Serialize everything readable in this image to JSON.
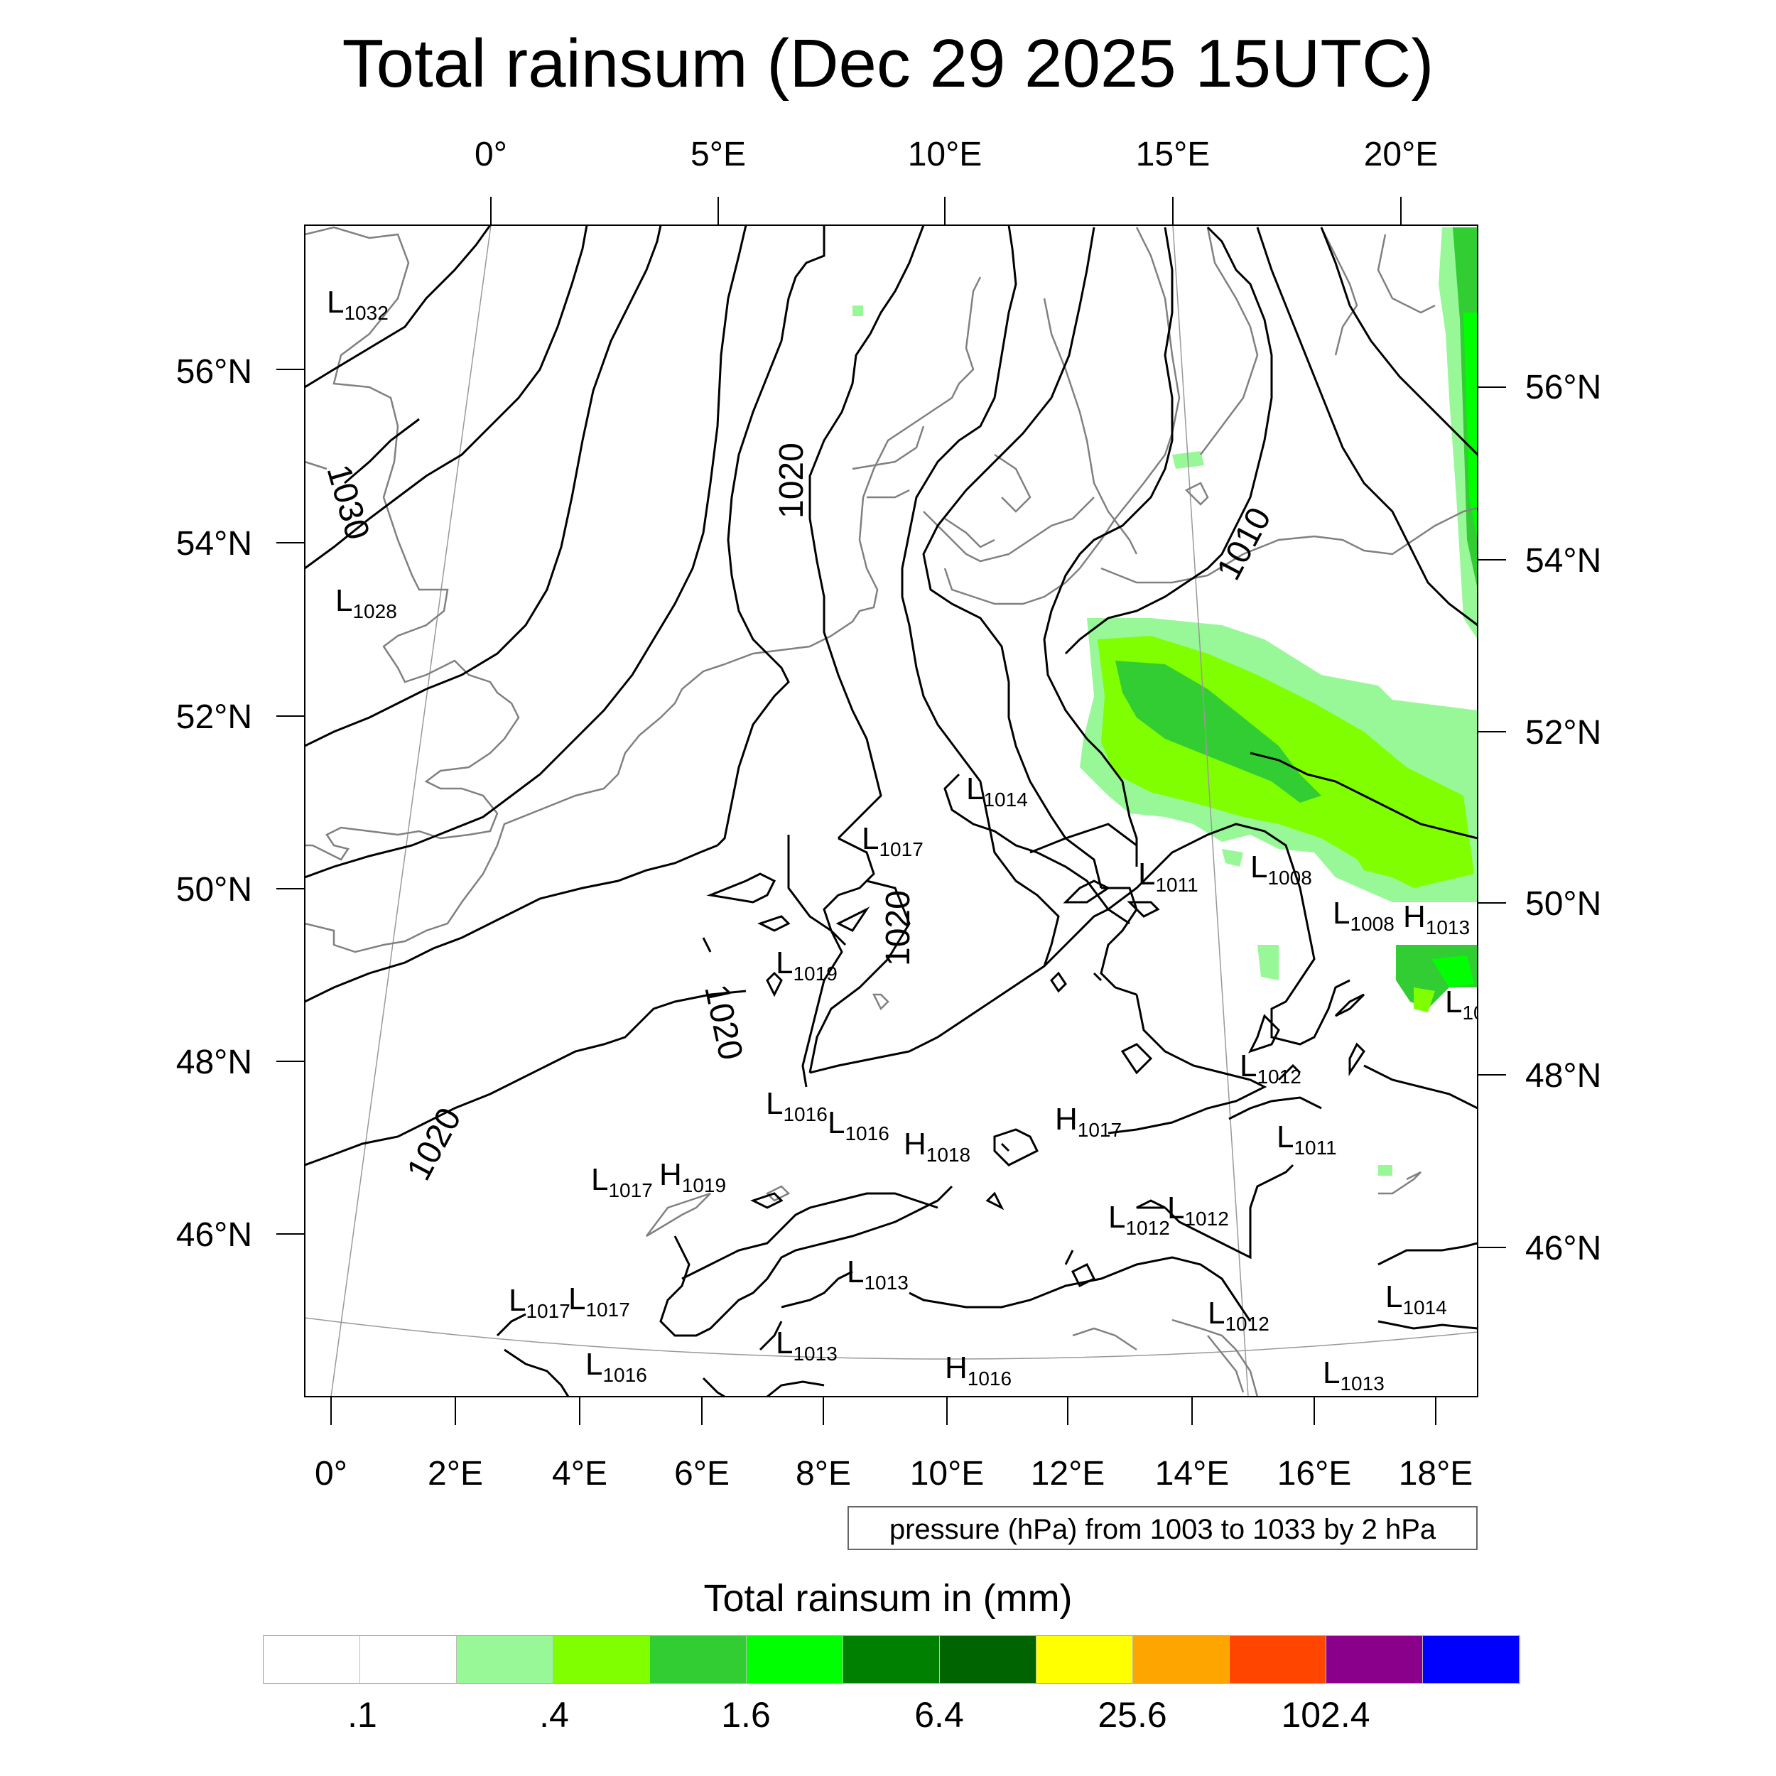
{
  "title": "Total rainsum (Dec 29 2025 15UTC)",
  "top_lon_labels": [
    "0°",
    "5°E",
    "10°E",
    "15°E",
    "20°E"
  ],
  "bottom_lon_labels": [
    "0°",
    "2°E",
    "4°E",
    "6°E",
    "8°E",
    "10°E",
    "12°E",
    "14°E",
    "16°E",
    "18°E"
  ],
  "left_lat_labels": [
    "56°N",
    "54°N",
    "52°N",
    "50°N",
    "48°N",
    "46°N"
  ],
  "right_lat_labels": [
    "56°N",
    "54°N",
    "52°N",
    "50°N",
    "48°N",
    "46°N"
  ],
  "pressure_note": "pressure (hPa) from 1003 to 1033 by 2 hPa",
  "legend": {
    "title": "Total rainsum in (mm)",
    "colors": [
      "#ffffff",
      "#ffffff",
      "#98f898",
      "#80ff00",
      "#32cd32",
      "#00ff00",
      "#008000",
      "#006400",
      "#ffff00",
      "#ffa500",
      "#ff4500",
      "#8b008b",
      "#0000ff"
    ],
    "labels": [
      ".1",
      ".4",
      "1.6",
      "6.4",
      "25.6",
      "102.4"
    ]
  },
  "contour_labels": [
    "1030",
    "1020",
    "1020",
    "1020",
    "1020",
    "1010"
  ],
  "pressure_centers": [
    {
      "type": "L",
      "value": "1032"
    },
    {
      "type": "L",
      "value": "1028"
    },
    {
      "type": "L",
      "value": "1014"
    },
    {
      "type": "L",
      "value": "1017"
    },
    {
      "type": "L",
      "value": "1011"
    },
    {
      "type": "L",
      "value": "1008"
    },
    {
      "type": "L",
      "value": "1008"
    },
    {
      "type": "H",
      "value": "1013"
    },
    {
      "type": "L",
      "value": "10"
    },
    {
      "type": "L",
      "value": "1019"
    },
    {
      "type": "L",
      "value": "1012"
    },
    {
      "type": "L",
      "value": "1016"
    },
    {
      "type": "L",
      "value": "1016"
    },
    {
      "type": "H",
      "value": "1017"
    },
    {
      "type": "H",
      "value": "1018"
    },
    {
      "type": "L",
      "value": "1011"
    },
    {
      "type": "L",
      "value": "1017"
    },
    {
      "type": "H",
      "value": "1019"
    },
    {
      "type": "L",
      "value": "1012"
    },
    {
      "type": "L",
      "value": "1012"
    },
    {
      "type": "L",
      "value": "1013"
    },
    {
      "type": "L",
      "value": "1017"
    },
    {
      "type": "L",
      "value": "1017"
    },
    {
      "type": "L",
      "value": "1012"
    },
    {
      "type": "L",
      "value": "1014"
    },
    {
      "type": "L",
      "value": "1016"
    },
    {
      "type": "L",
      "value": "1013"
    },
    {
      "type": "H",
      "value": "1016"
    },
    {
      "type": "L",
      "value": "1013"
    }
  ]
}
